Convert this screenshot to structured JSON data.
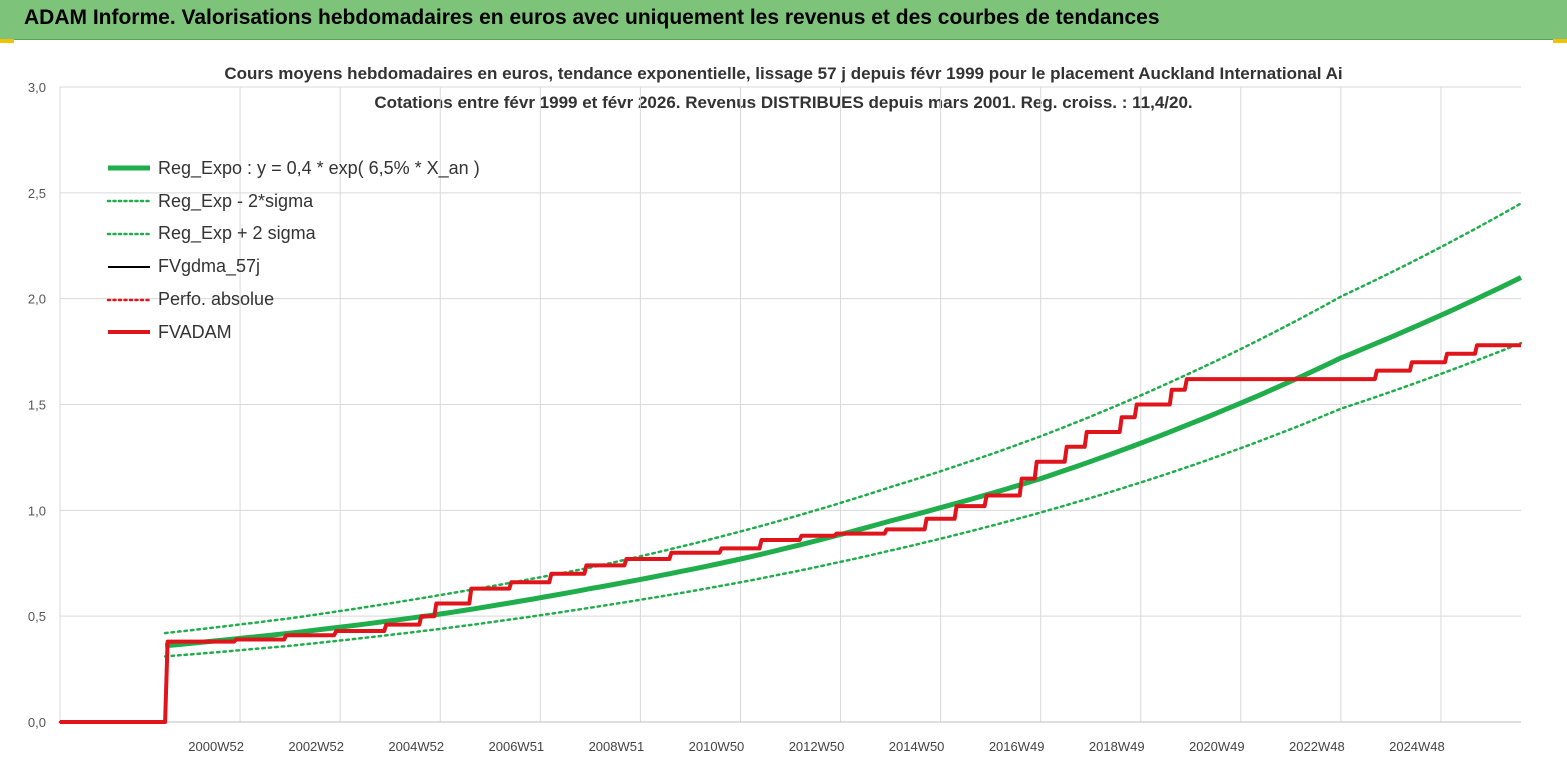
{
  "header": {
    "title": "ADAM Informe. Valorisations hebdomadaires en euros avec uniquement les revenus et des courbes de tendances"
  },
  "colors": {
    "header_bg": "#7dc47a",
    "reg_expo": "#1fae4b",
    "fvadam": "#e0141b",
    "fvgdma": "#000000",
    "perfo": "#e0141b"
  },
  "chart_data": {
    "type": "line",
    "title": "Cours moyens hebdomadaires en euros, tendance exponentielle, lissage 57 j depuis févr 1999 pour le placement Auckland International Ai",
    "subtitle": "Cotations entre févr 1999 et févr 2026. Revenus DISTRIBUES depuis mars 2001. Reg. croiss. : 11,4/20.",
    "xlabel": "",
    "ylabel": "",
    "ylim": [
      0,
      3
    ],
    "y_ticks": [
      "0,0",
      "0,5",
      "1,0",
      "1,5",
      "2,0",
      "2,5",
      "3,0"
    ],
    "xlim": [
      1997.4,
      2026.6
    ],
    "x_ticks": [
      {
        "label": "2000W52",
        "x": 2001.0
      },
      {
        "label": "2002W52",
        "x": 2003.0
      },
      {
        "label": "2004W52",
        "x": 2005.0
      },
      {
        "label": "2006W51",
        "x": 2007.0
      },
      {
        "label": "2008W51",
        "x": 2009.0
      },
      {
        "label": "2010W50",
        "x": 2011.0
      },
      {
        "label": "2012W50",
        "x": 2013.0
      },
      {
        "label": "2014W50",
        "x": 2015.0
      },
      {
        "label": "2016W49",
        "x": 2017.0
      },
      {
        "label": "2018W49",
        "x": 2019.0
      },
      {
        "label": "2020W49",
        "x": 2021.0
      },
      {
        "label": "2022W48",
        "x": 2023.0
      },
      {
        "label": "2024W48",
        "x": 2025.0
      }
    ],
    "grid": true,
    "legend_position": "top-left",
    "series": [
      {
        "name": "Reg_Expo : y = 0,4 * exp( 6,5% *  X_an )",
        "style": "solid-thick",
        "color": "#1fae4b",
        "x": [
          1999.5,
          2002,
          2005,
          2008,
          2011,
          2014,
          2017,
          2020,
          2023,
          2026.6
        ],
        "y": [
          0.36,
          0.42,
          0.51,
          0.63,
          0.77,
          0.95,
          1.15,
          1.41,
          1.72,
          2.1
        ]
      },
      {
        "name": "Reg_Exp - 2*sigma",
        "style": "dotted",
        "color": "#1fae4b",
        "x": [
          1999.5,
          2002,
          2005,
          2008,
          2011,
          2014,
          2017,
          2020,
          2023,
          2026.6
        ],
        "y": [
          0.31,
          0.36,
          0.44,
          0.54,
          0.66,
          0.81,
          0.99,
          1.21,
          1.48,
          1.79
        ]
      },
      {
        "name": "Reg_Exp + 2 sigma",
        "style": "dotted",
        "color": "#1fae4b",
        "x": [
          1999.5,
          2002,
          2005,
          2008,
          2011,
          2014,
          2017,
          2020,
          2023,
          2026.6
        ],
        "y": [
          0.42,
          0.49,
          0.6,
          0.73,
          0.9,
          1.11,
          1.35,
          1.65,
          2.01,
          2.45
        ]
      },
      {
        "name": "FVgdma_57j",
        "style": "solid",
        "color": "#000000",
        "x": [
          1997.4,
          1999.5,
          1999.55,
          2001,
          2002,
          2003,
          2004,
          2004.7,
          2005,
          2005.7,
          2006.5,
          2007.3,
          2008,
          2008.8,
          2009.7,
          2010.7,
          2011.5,
          2012.3,
          2013,
          2014,
          2014.8,
          2015.4,
          2016,
          2016.7,
          2017,
          2017.6,
          2018,
          2018.7,
          2019,
          2019.7,
          2020,
          2022,
          2023,
          2023.8,
          2024.5,
          2025.2,
          2025.8,
          2026.6
        ],
        "y": [
          0.0,
          0.0,
          0.38,
          0.39,
          0.41,
          0.43,
          0.46,
          0.5,
          0.56,
          0.63,
          0.66,
          0.7,
          0.74,
          0.77,
          0.8,
          0.82,
          0.86,
          0.88,
          0.89,
          0.91,
          0.96,
          1.02,
          1.07,
          1.15,
          1.23,
          1.3,
          1.37,
          1.44,
          1.5,
          1.57,
          1.62,
          1.62,
          1.62,
          1.66,
          1.7,
          1.74,
          1.78,
          1.78
        ]
      },
      {
        "name": "Perfo. absolue",
        "style": "dotted",
        "color": "#e0141b",
        "x": [
          1997.4,
          1999.5,
          1999.55,
          2001,
          2002,
          2003,
          2004,
          2004.7,
          2005,
          2005.7,
          2006.5,
          2007.3,
          2008,
          2008.8,
          2009.7,
          2010.7,
          2011.5,
          2012.3,
          2013,
          2014,
          2014.8,
          2015.4,
          2016,
          2016.7,
          2017,
          2017.6,
          2018,
          2018.7,
          2019,
          2019.7,
          2020,
          2022,
          2023,
          2023.8,
          2024.5,
          2025.2,
          2025.8,
          2026.6
        ],
        "y": [
          0.0,
          0.0,
          0.38,
          0.39,
          0.41,
          0.43,
          0.46,
          0.5,
          0.56,
          0.63,
          0.66,
          0.7,
          0.74,
          0.77,
          0.8,
          0.82,
          0.86,
          0.88,
          0.89,
          0.91,
          0.96,
          1.02,
          1.07,
          1.15,
          1.23,
          1.3,
          1.37,
          1.44,
          1.5,
          1.57,
          1.62,
          1.62,
          1.62,
          1.66,
          1.7,
          1.74,
          1.78,
          1.78
        ]
      },
      {
        "name": "FVADAM",
        "style": "solid-thick",
        "color": "#e0141b",
        "x": [
          1997.4,
          1999.5,
          1999.55,
          2001,
          2002,
          2003,
          2004,
          2004.7,
          2005,
          2005.7,
          2006.5,
          2007.3,
          2008,
          2008.8,
          2009.7,
          2010.7,
          2011.5,
          2012.3,
          2013,
          2014,
          2014.8,
          2015.4,
          2016,
          2016.7,
          2017,
          2017.6,
          2018,
          2018.7,
          2019,
          2019.7,
          2020,
          2022,
          2023,
          2023.8,
          2024.5,
          2025.2,
          2025.8,
          2026.6
        ],
        "y": [
          0.0,
          0.0,
          0.38,
          0.39,
          0.41,
          0.43,
          0.46,
          0.5,
          0.56,
          0.63,
          0.66,
          0.7,
          0.74,
          0.77,
          0.8,
          0.82,
          0.86,
          0.88,
          0.89,
          0.91,
          0.96,
          1.02,
          1.07,
          1.15,
          1.23,
          1.3,
          1.37,
          1.44,
          1.5,
          1.57,
          1.62,
          1.62,
          1.62,
          1.66,
          1.7,
          1.74,
          1.78,
          1.78
        ]
      }
    ]
  }
}
